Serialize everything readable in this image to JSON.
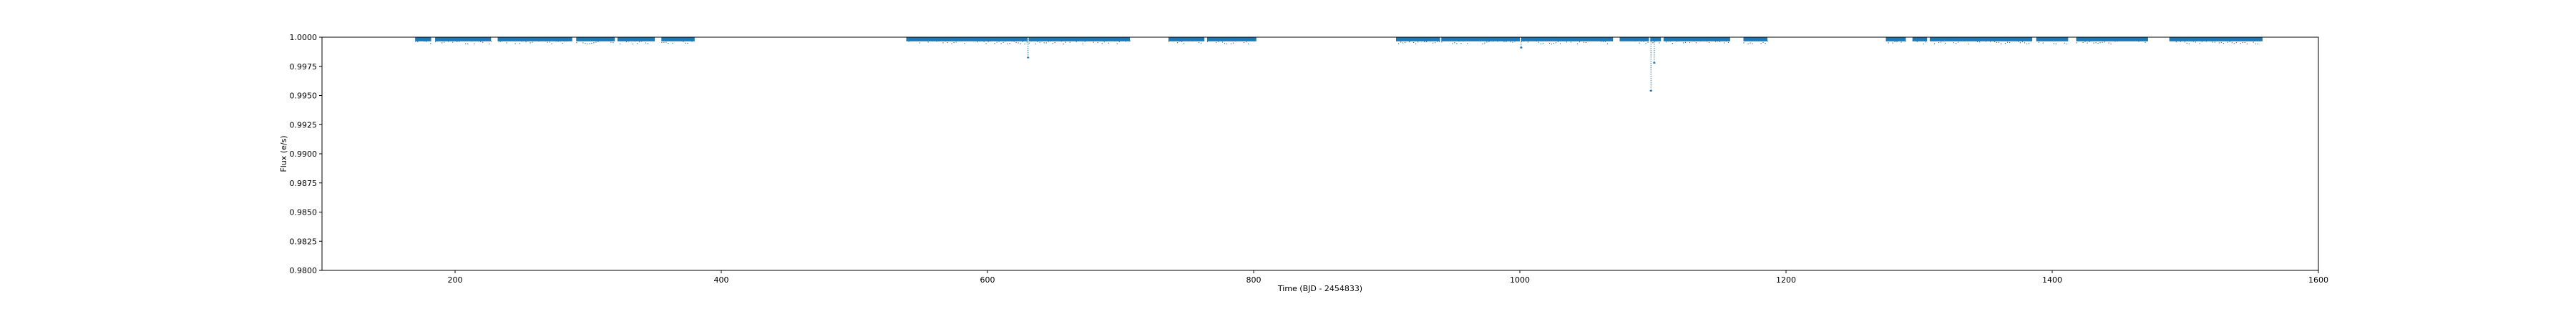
{
  "chart_data": {
    "type": "scatter",
    "title": "",
    "xlabel": "Time (BJD - 2454833)",
    "ylabel": "Flux (e/s)",
    "xlim": [
      100,
      1600
    ],
    "ylim": [
      0.98,
      1.0
    ],
    "xticks": [
      200,
      400,
      600,
      800,
      1000,
      1200,
      1400,
      1600
    ],
    "yticks": [
      0.98,
      0.9825,
      0.985,
      0.9875,
      0.99,
      0.9925,
      0.995,
      0.9975,
      1.0
    ],
    "ytick_labels": [
      "0.9800",
      "0.9825",
      "0.9850",
      "0.9875",
      "0.9900",
      "0.9925",
      "0.9950",
      "0.9975",
      "1.0000"
    ],
    "grid": false,
    "legend": false,
    "marker_color": "#1f77b4",
    "segments": [
      [
        170,
        182
      ],
      [
        185,
        227
      ],
      [
        232,
        288
      ],
      [
        291,
        320
      ],
      [
        322,
        350
      ],
      [
        355,
        380
      ],
      [
        539,
        630
      ],
      [
        631,
        707
      ],
      [
        736,
        763
      ],
      [
        765,
        802
      ],
      [
        907,
        940
      ],
      [
        941,
        1000
      ],
      [
        1001,
        1070
      ],
      [
        1075,
        1097
      ],
      [
        1098,
        1106
      ],
      [
        1108,
        1158
      ],
      [
        1168,
        1186
      ],
      [
        1275,
        1290
      ],
      [
        1295,
        1306
      ],
      [
        1308,
        1385
      ],
      [
        1388,
        1412
      ],
      [
        1418,
        1472
      ],
      [
        1488,
        1558
      ]
    ],
    "transits": [
      {
        "x": 630.5,
        "depth_min": 0.99825
      },
      {
        "x": 1001,
        "depth_min": 0.9991
      },
      {
        "x": 1098.5,
        "depth_min": 0.9954
      },
      {
        "x": 1101,
        "depth_min": 0.9978
      }
    ]
  }
}
